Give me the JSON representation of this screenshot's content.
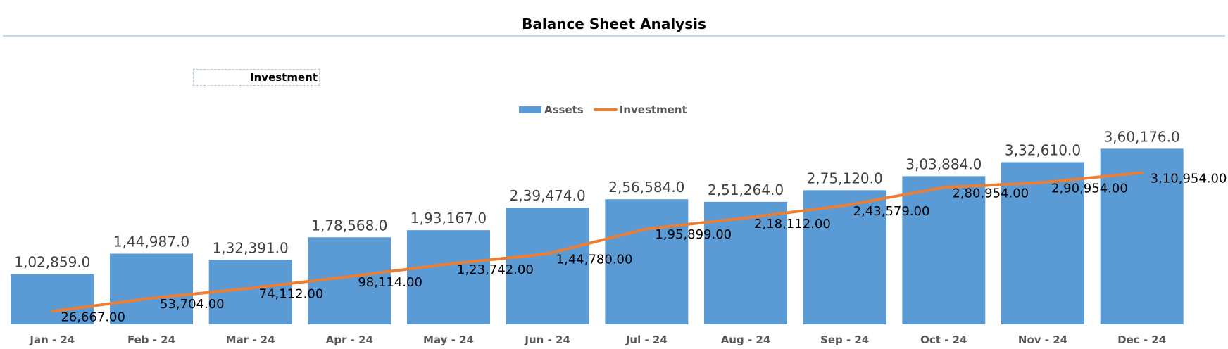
{
  "chart_data": {
    "type": "bar",
    "title": "Balance Sheet Analysis",
    "floating_label": "Investment",
    "categories": [
      "Jan - 24",
      "Feb - 24",
      "Mar - 24",
      "Apr - 24",
      "May - 24",
      "Jun - 24",
      "Jul - 24",
      "Aug - 24",
      "Sep - 24",
      "Oct - 24",
      "Nov - 24",
      "Dec - 24"
    ],
    "series": [
      {
        "name": "Assets",
        "type": "bar",
        "color": "#5b9bd5",
        "values": [
          102859,
          144987,
          132391,
          178568,
          193167,
          239474,
          256584,
          251264,
          275120,
          303884,
          332610,
          360176
        ],
        "labels": [
          "1,02,859.0",
          "1,44,987.0",
          "1,32,391.0",
          "1,78,568.0",
          "1,93,167.0",
          "2,39,474.0",
          "2,56,584.0",
          "2,51,264.0",
          "2,75,120.0",
          "3,03,884.0",
          "3,32,610.0",
          "3,60,176.0"
        ]
      },
      {
        "name": "Investment",
        "type": "line",
        "color": "#ed7d31",
        "values": [
          26667,
          53704,
          74112,
          98114,
          123742,
          144780,
          195899,
          218112,
          243579,
          280954,
          290954,
          310954
        ],
        "labels": [
          "26,667.00",
          "53,704.00",
          "74,112.00",
          "98,114.00",
          "1,23,742.00",
          "1,44,780.00",
          "1,95,899.00",
          "2,18,112.00",
          "2,43,579.00",
          "2,80,954.00",
          "2,90,954.00",
          "3,10,954.00"
        ]
      }
    ],
    "ylim": [
      0,
      400000
    ],
    "grid": false,
    "legend_position": "top-center"
  }
}
